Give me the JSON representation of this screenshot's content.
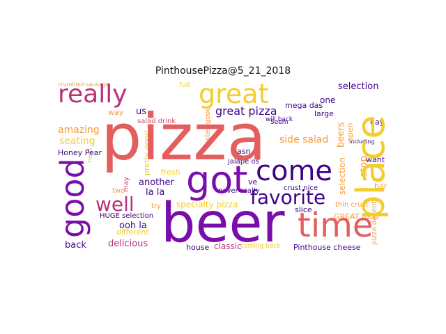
{
  "title": "PinthousePizza@5_21_2018",
  "palette": {
    "salmon": "#e45e5e",
    "orange": "#f79b3b",
    "yellow": "#f2cd2b",
    "purple": "#7a0eab",
    "indigo": "#3e0387",
    "magenta": "#b8317a",
    "rose": "#d2486b",
    "deep": "#2a0575"
  },
  "words": {
    "pizza": "pizza",
    "beer": "beer",
    "place": "place",
    "got": "got",
    "come": "come",
    "time": "time",
    "good": "good",
    "great": "great",
    "really": "really",
    "favorite": "favorite",
    "well": "well",
    "great_pizza": "great pizza",
    "selection": "selection",
    "amazing": "amazing",
    "seating": "seating",
    "honey_pear": "Honey Pear",
    "salad_drink": "salad drink",
    "us": "us",
    "way": "way",
    "pretty_good": "pretty good",
    "another": "another",
    "la_la": "la la",
    "ooh_la": "ooh la",
    "huge_selection": "HUGE selection",
    "specialty_pizza": "specialty pizza",
    "delicious": "delicious",
    "back": "back",
    "house": "house",
    "classic": "classic",
    "coming_back": "coming back",
    "pinthouse_cheese": "Pinthouse cheese",
    "great_food": "GREAT food",
    "thin_crust": "thin crust",
    "slice": "slice",
    "crust_nice": "crust nice",
    "never_really": "never really",
    "jalapenos": "jalape os",
    "wasn": "wasn",
    "side_salad": "side salad",
    "will_back": "will back",
    "mega_das": "mega das",
    "large": "large",
    "one": "one",
    "beers": "beers",
    "stop": "stop",
    "bar": "bar",
    "want": "want",
    "day": "day",
    "pizza_decent": "pizza decent",
    "crumbled_sausage": "crumbled sausage",
    "next": "next",
    "fresh": "fresh",
    "try": "try",
    "may": "may",
    "two": "two",
    "different": "different",
    "full": "full",
    "seem": "Seem",
    "tastes_good": "tastes good",
    "ve": "ve",
    "including": "including",
    "open": "open"
  }
}
